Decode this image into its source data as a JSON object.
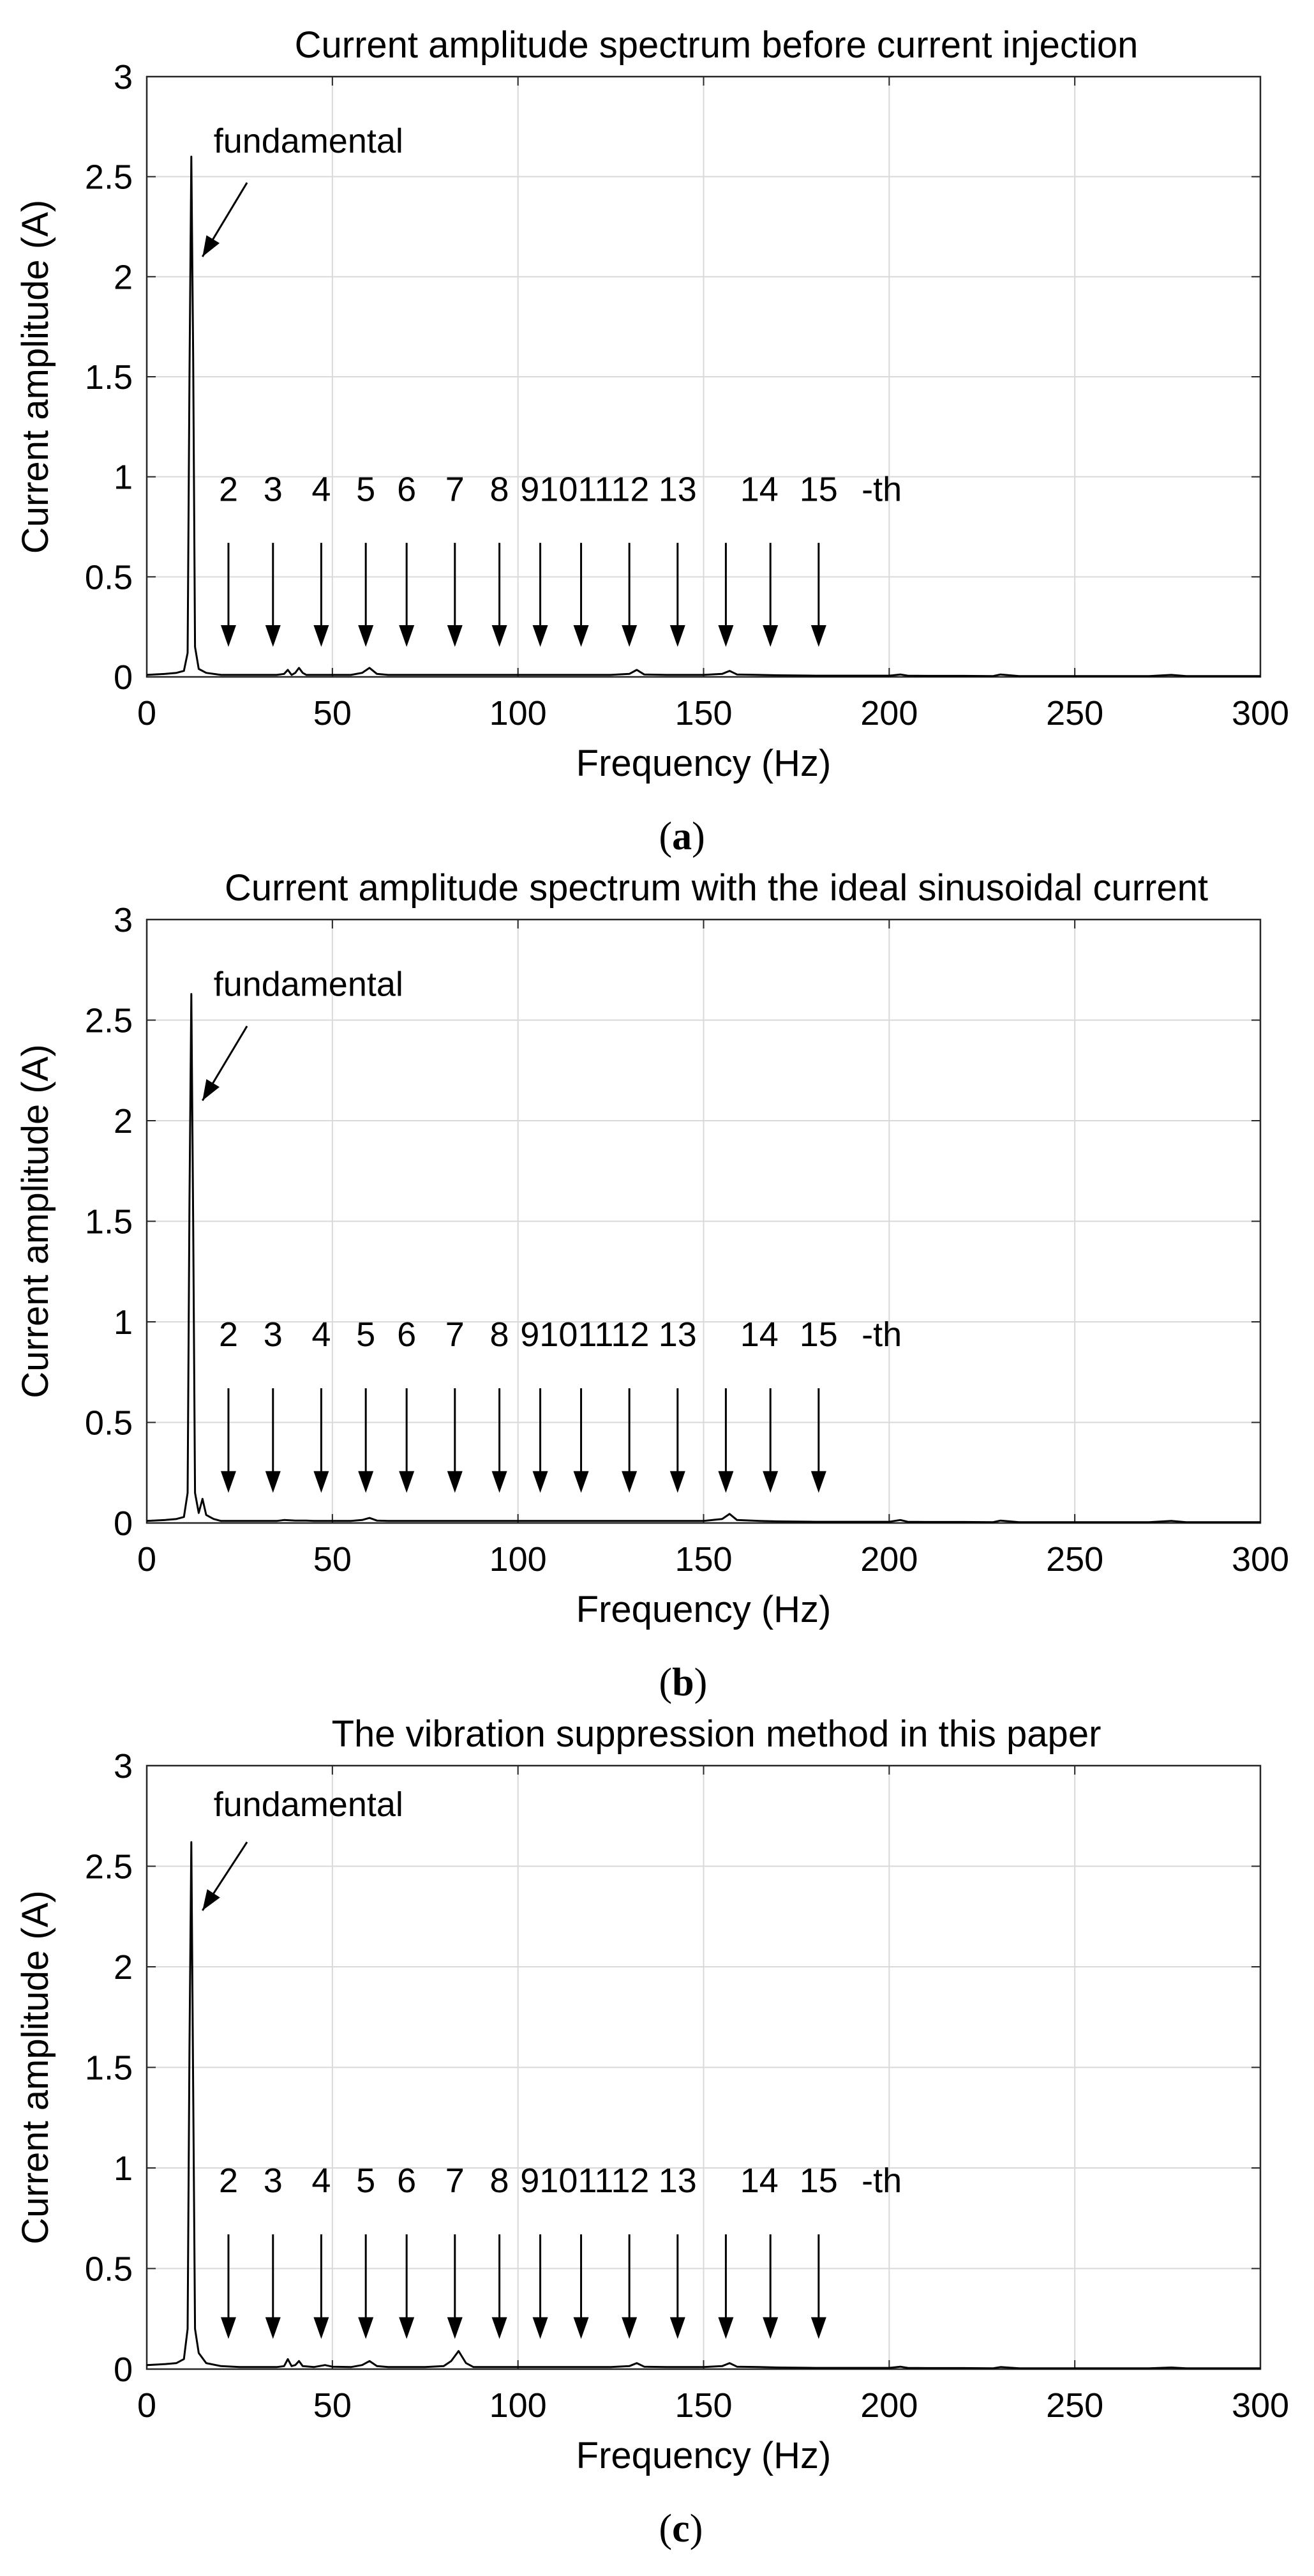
{
  "chart_data": [
    {
      "type": "line",
      "title": "Current amplitude spectrum before current injection",
      "xlabel": "Frequency (Hz)",
      "ylabel": "Current amplitude (A)",
      "xlim": [
        0,
        300
      ],
      "ylim": [
        0,
        3
      ],
      "xticks": [
        0,
        50,
        100,
        150,
        200,
        250,
        300
      ],
      "yticks": [
        0,
        0.5,
        1,
        1.5,
        2,
        2.5,
        3
      ],
      "xtick_labels": [
        "0",
        "50",
        "100",
        "150",
        "200",
        "250",
        "300"
      ],
      "ytick_labels": [
        "0",
        "0.5",
        "1",
        "1.5",
        "2",
        "2.5",
        "3"
      ],
      "grid": true,
      "caption": "a",
      "annotation": {
        "text": "fundamental",
        "text_x": 18,
        "text_y": 2.62,
        "arrow_from": [
          27,
          2.47
        ],
        "arrow_to": [
          15,
          2.1
        ]
      },
      "harmonic_labels": [
        "2",
        "3",
        "4",
        "5",
        "6",
        "7",
        "8",
        "91011121314",
        "15",
        "-th"
      ],
      "harmonic_label_text": [
        "2",
        "3",
        "4",
        "5",
        "6",
        "7",
        "8",
        "9101112",
        "13",
        "14",
        "15",
        "-th"
      ],
      "harmonic_arrow_x": [
        22,
        34,
        47,
        59,
        70,
        83,
        95,
        106,
        117,
        130,
        143,
        156,
        168,
        181
      ],
      "arrow_y_top": 0.67,
      "arrow_y_bottom": 0.15,
      "harmonic_label_y": 0.88,
      "series": [
        {
          "x": [
            0,
            5,
            8,
            10,
            11,
            11.5,
            12,
            12.5,
            13,
            14,
            16,
            20,
            25,
            30,
            35,
            37,
            38,
            39,
            40,
            41,
            42,
            43,
            45,
            50,
            55,
            58,
            60,
            62,
            65,
            70,
            75,
            80,
            85,
            90,
            95,
            100,
            105,
            110,
            115,
            120,
            125,
            130,
            132,
            134,
            140,
            145,
            150,
            155,
            157,
            159,
            165,
            170,
            180,
            190,
            200,
            203,
            205,
            210,
            220,
            228,
            230,
            235,
            250,
            270,
            276,
            280,
            300
          ],
          "y": [
            0.01,
            0.015,
            0.02,
            0.03,
            0.12,
            1.5,
            2.6,
            1.6,
            0.15,
            0.04,
            0.02,
            0.01,
            0.01,
            0.01,
            0.01,
            0.015,
            0.035,
            0.01,
            0.02,
            0.045,
            0.02,
            0.01,
            0.01,
            0.01,
            0.01,
            0.02,
            0.045,
            0.015,
            0.01,
            0.01,
            0.01,
            0.01,
            0.01,
            0.01,
            0.01,
            0.01,
            0.01,
            0.01,
            0.01,
            0.01,
            0.01,
            0.015,
            0.035,
            0.012,
            0.01,
            0.01,
            0.01,
            0.015,
            0.03,
            0.012,
            0.01,
            0.008,
            0.006,
            0.006,
            0.006,
            0.012,
            0.006,
            0.005,
            0.005,
            0.004,
            0.012,
            0.004,
            0.004,
            0.004,
            0.01,
            0.004,
            0.004
          ]
        }
      ]
    },
    {
      "type": "line",
      "title": "Current amplitude spectrum with the ideal sinusoidal current",
      "xlabel": "Frequency (Hz)",
      "ylabel": "Current amplitude (A)",
      "xlim": [
        0,
        300
      ],
      "ylim": [
        0,
        3
      ],
      "xticks": [
        0,
        50,
        100,
        150,
        200,
        250,
        300
      ],
      "yticks": [
        0,
        0.5,
        1,
        1.5,
        2,
        2.5,
        3
      ],
      "xtick_labels": [
        "0",
        "50",
        "100",
        "150",
        "200",
        "250",
        "300"
      ],
      "ytick_labels": [
        "0",
        "0.5",
        "1",
        "1.5",
        "2",
        "2.5",
        "3"
      ],
      "grid": true,
      "caption": "b",
      "annotation": {
        "text": "fundamental",
        "text_x": 18,
        "text_y": 2.62,
        "arrow_from": [
          27,
          2.47
        ],
        "arrow_to": [
          15,
          2.1
        ]
      },
      "harmonic_label_text": [
        "2",
        "3",
        "4",
        "5",
        "6",
        "7",
        "8",
        "9101112",
        "13",
        "14",
        "15",
        "-th"
      ],
      "harmonic_arrow_x": [
        22,
        34,
        47,
        59,
        70,
        83,
        95,
        106,
        117,
        130,
        143,
        156,
        168,
        181
      ],
      "arrow_y_top": 0.67,
      "arrow_y_bottom": 0.15,
      "harmonic_label_y": 0.88,
      "series": [
        {
          "x": [
            0,
            5,
            8,
            10,
            11,
            11.5,
            12,
            12.5,
            13,
            14,
            15,
            16,
            18,
            20,
            25,
            30,
            35,
            37,
            40,
            43,
            45,
            50,
            55,
            58,
            60,
            62,
            65,
            70,
            75,
            80,
            85,
            90,
            95,
            100,
            105,
            110,
            115,
            120,
            125,
            130,
            135,
            140,
            145,
            150,
            155,
            157,
            159,
            165,
            170,
            180,
            190,
            200,
            203,
            205,
            210,
            220,
            228,
            230,
            235,
            250,
            270,
            276,
            280,
            300
          ],
          "y": [
            0.01,
            0.015,
            0.02,
            0.03,
            0.15,
            1.6,
            2.63,
            1.5,
            0.15,
            0.05,
            0.12,
            0.04,
            0.02,
            0.01,
            0.01,
            0.01,
            0.01,
            0.015,
            0.012,
            0.012,
            0.01,
            0.01,
            0.01,
            0.015,
            0.025,
            0.012,
            0.01,
            0.01,
            0.01,
            0.01,
            0.01,
            0.01,
            0.01,
            0.01,
            0.01,
            0.01,
            0.01,
            0.01,
            0.01,
            0.01,
            0.01,
            0.01,
            0.01,
            0.01,
            0.02,
            0.045,
            0.015,
            0.01,
            0.008,
            0.006,
            0.006,
            0.006,
            0.015,
            0.006,
            0.005,
            0.005,
            0.004,
            0.012,
            0.004,
            0.004,
            0.004,
            0.01,
            0.004,
            0.004
          ]
        }
      ]
    },
    {
      "type": "line",
      "title": "The vibration suppression method in this paper",
      "xlabel": "Frequency (Hz)",
      "ylabel": "Current amplitude (A)",
      "xlim": [
        0,
        300
      ],
      "ylim": [
        0,
        3
      ],
      "xticks": [
        0,
        50,
        100,
        150,
        200,
        250,
        300
      ],
      "yticks": [
        0,
        0.5,
        1,
        1.5,
        2,
        2.5,
        3
      ],
      "xtick_labels": [
        "0",
        "50",
        "100",
        "150",
        "200",
        "250",
        "300"
      ],
      "ytick_labels": [
        "0",
        "0.5",
        "1",
        "1.5",
        "2",
        "2.5",
        "3"
      ],
      "grid": true,
      "caption": "c",
      "annotation": {
        "text": "fundamental",
        "text_x": 18,
        "text_y": 2.75,
        "arrow_from": [
          27,
          2.62
        ],
        "arrow_to": [
          15,
          2.28
        ]
      },
      "harmonic_label_text": [
        "2",
        "3",
        "4",
        "5",
        "6",
        "7",
        "8",
        "9101112",
        "13",
        "14",
        "15",
        "-th"
      ],
      "harmonic_arrow_x": [
        22,
        34,
        47,
        59,
        70,
        83,
        95,
        106,
        117,
        130,
        143,
        156,
        168,
        181
      ],
      "arrow_y_top": 0.67,
      "arrow_y_bottom": 0.15,
      "harmonic_label_y": 0.88,
      "series": [
        {
          "x": [
            0,
            5,
            8,
            10,
            11,
            11.5,
            12,
            12.5,
            13,
            14,
            16,
            20,
            25,
            30,
            35,
            37,
            38,
            39,
            40,
            41,
            42,
            45,
            48,
            50,
            55,
            58,
            60,
            62,
            65,
            70,
            75,
            80,
            82,
            84,
            86,
            88,
            90,
            95,
            100,
            105,
            110,
            115,
            120,
            125,
            130,
            132,
            134,
            140,
            145,
            150,
            155,
            157,
            159,
            165,
            170,
            180,
            190,
            200,
            203,
            205,
            210,
            220,
            228,
            230,
            235,
            250,
            270,
            276,
            280,
            300
          ],
          "y": [
            0.02,
            0.025,
            0.03,
            0.05,
            0.2,
            1.6,
            2.62,
            1.4,
            0.2,
            0.08,
            0.03,
            0.015,
            0.01,
            0.01,
            0.01,
            0.015,
            0.05,
            0.015,
            0.02,
            0.04,
            0.015,
            0.01,
            0.02,
            0.012,
            0.01,
            0.02,
            0.04,
            0.015,
            0.01,
            0.01,
            0.01,
            0.015,
            0.04,
            0.09,
            0.03,
            0.01,
            0.01,
            0.01,
            0.01,
            0.01,
            0.01,
            0.01,
            0.01,
            0.01,
            0.015,
            0.03,
            0.012,
            0.01,
            0.01,
            0.01,
            0.015,
            0.03,
            0.012,
            0.01,
            0.008,
            0.006,
            0.006,
            0.006,
            0.012,
            0.006,
            0.005,
            0.005,
            0.004,
            0.01,
            0.004,
            0.004,
            0.004,
            0.008,
            0.004,
            0.004
          ]
        }
      ]
    }
  ]
}
